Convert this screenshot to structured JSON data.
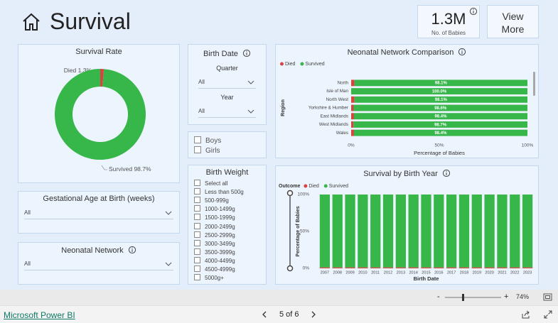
{
  "header": {
    "title": "Survival",
    "kpi_value": "1.3M",
    "kpi_label": "No. of Babies",
    "button": "View More"
  },
  "slicers": {
    "birth_date": {
      "title": "Birth Date",
      "quarter_label": "Quarter",
      "quarter_value": "All",
      "year_label": "Year",
      "year_value": "All"
    },
    "gender": {
      "options": [
        "Boys",
        "Girls"
      ]
    },
    "birth_weight": {
      "title": "Birth Weight",
      "options": [
        "Select all",
        "Less than 500g",
        "500-999g",
        "1000-1499g",
        "1500-1999g",
        "2000-2499g",
        "2500-2999g",
        "3000-3499g",
        "3500-3999g",
        "4000-4499g",
        "4500-4999g",
        "5000g+"
      ]
    },
    "gestational_age": {
      "title": "Gestational Age at Birth (weeks)",
      "value": "All"
    },
    "neonatal_network": {
      "title": "Neonatal Network",
      "value": "All"
    }
  },
  "chart_data": [
    {
      "type": "pie",
      "title": "Survival Rate",
      "donut": true,
      "categories": [
        "Died",
        "Survived"
      ],
      "values": [
        1.3,
        98.7
      ],
      "value_labels": [
        "1.3%",
        "98.7%"
      ],
      "colors": [
        "#d64541",
        "#37b64a"
      ]
    },
    {
      "type": "bar",
      "orientation": "horizontal",
      "stacked": true,
      "title": "Neonatal Network Comparison",
      "xlabel": "Percentage of Babies",
      "ylabel": "Region",
      "categories": [
        "North",
        "Isle of Man",
        "North West",
        "Yorkshire & Humber",
        "East Midlands",
        "West Midlands",
        "Wales"
      ],
      "series": [
        {
          "name": "Died",
          "color": "#d64541",
          "values": [
            1.9,
            0.0,
            1.9,
            1.4,
            1.6,
            1.3,
            1.6
          ]
        },
        {
          "name": "Survived",
          "color": "#37b64a",
          "values": [
            98.1,
            100.0,
            98.1,
            98.6,
            98.4,
            98.7,
            98.4
          ],
          "value_labels": [
            "98.1%",
            "100.0%",
            "98.1%",
            "98.6%",
            "98.4%",
            "98.7%",
            "98.4%"
          ]
        }
      ],
      "xlim": [
        0,
        100
      ],
      "xticks": [
        {
          "value": 0,
          "label": "0%"
        },
        {
          "value": 50,
          "label": "50%"
        },
        {
          "value": 100,
          "label": "100%"
        }
      ]
    },
    {
      "type": "bar",
      "orientation": "vertical",
      "stacked": true,
      "title": "Survival by Birth Year",
      "xlabel": "Birth Date",
      "ylabel": "Percentage of Babies",
      "legend_title": "Outcome",
      "categories": [
        "2007",
        "2008",
        "2009",
        "2010",
        "2011",
        "2012",
        "2013",
        "2014",
        "2015",
        "2016",
        "2017",
        "2018",
        "2019",
        "2020",
        "2021",
        "2022",
        "2023"
      ],
      "series": [
        {
          "name": "Died",
          "color": "#d64541",
          "values": [
            1.3,
            1.3,
            1.3,
            1.3,
            1.3,
            1.3,
            1.3,
            1.3,
            1.3,
            1.3,
            1.3,
            1.3,
            1.3,
            1.3,
            1.3,
            1.3,
            1.3
          ]
        },
        {
          "name": "Survived",
          "color": "#37b64a",
          "values": [
            98.7,
            98.7,
            98.7,
            98.7,
            98.7,
            98.7,
            98.7,
            98.7,
            98.7,
            98.7,
            98.7,
            98.7,
            98.7,
            98.7,
            98.7,
            98.7,
            98.7
          ]
        }
      ],
      "ylim": [
        0,
        100
      ],
      "yticks": [
        {
          "value": 0,
          "label": "0%"
        },
        {
          "value": 50,
          "label": "50%"
        },
        {
          "value": 100,
          "label": "100%"
        }
      ]
    }
  ],
  "zoom": {
    "minus": "-",
    "plus": "+",
    "level": "74%"
  },
  "footer": {
    "link": "Microsoft Power BI",
    "page": "5 of 6"
  }
}
